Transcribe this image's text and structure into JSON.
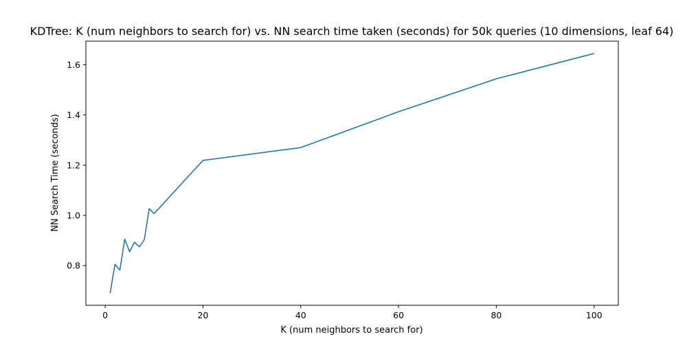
{
  "chart_data": {
    "type": "line",
    "title": "KDTree: K (num neighbors to search for) vs. NN search time taken (seconds) for 50k queries (10 dimensions, leaf 64)",
    "xlabel": "K (num neighbors to search for)",
    "ylabel": "NN Search Time (seconds)",
    "xlim": [
      -3.95,
      104.95
    ],
    "ylim": [
      0.642,
      1.694
    ],
    "xticks": [
      0,
      20,
      40,
      60,
      80,
      100
    ],
    "xtick_labels": [
      "0",
      "20",
      "40",
      "60",
      "80",
      "100"
    ],
    "yticks": [
      0.8,
      1.0,
      1.2,
      1.4,
      1.6
    ],
    "ytick_labels": [
      "0.8",
      "1.0",
      "1.2",
      "1.4",
      "1.6"
    ],
    "grid": false,
    "series": [
      {
        "color": "#1f77b4",
        "x": [
          1,
          2,
          3,
          4,
          5,
          6,
          7,
          8,
          9,
          10,
          20,
          40,
          60,
          80,
          100
        ],
        "y": [
          0.69,
          0.805,
          0.782,
          0.905,
          0.855,
          0.893,
          0.875,
          0.903,
          1.027,
          1.007,
          1.219,
          1.27,
          1.413,
          1.544,
          1.645
        ]
      }
    ]
  }
}
